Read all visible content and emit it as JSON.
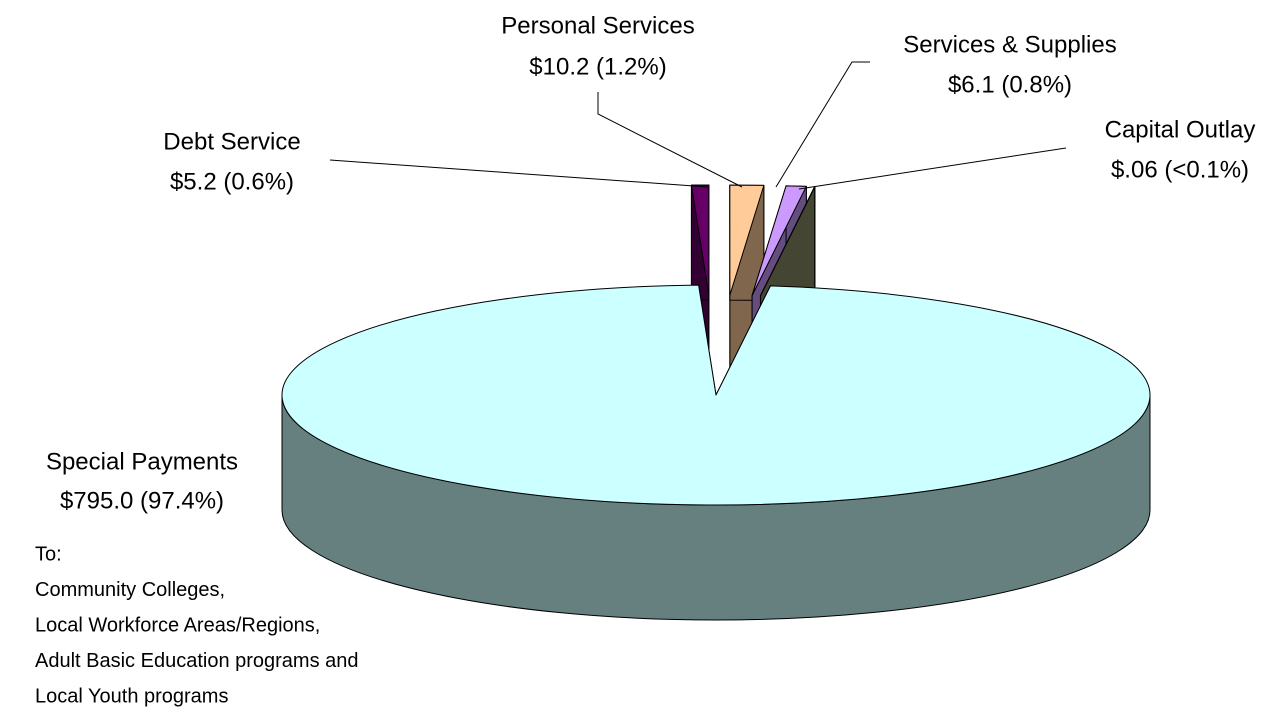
{
  "chart_data": {
    "type": "pie3d",
    "categories": [
      "Special Payments",
      "Debt Service",
      "Personal Services",
      "Services & Supplies",
      "Capital Outlay"
    ],
    "values": [
      795.0,
      5.2,
      10.2,
      6.1,
      0.06
    ],
    "value_labels": [
      "$795.0 (97.4%)",
      "$5.2 (0.6%)",
      "$10.2 (1.2%)",
      "$6.1 (0.8%)",
      "$.06 (<0.1%)"
    ],
    "colors": [
      "#ccffff",
      "#660066",
      "#ffcc99",
      "#cc99ff",
      "#8a8a66"
    ],
    "annotation": [
      "To:",
      "Community Colleges,",
      "Local Workforce Areas/Regions,",
      "Adult Basic Education programs and",
      "Local Youth programs"
    ]
  }
}
